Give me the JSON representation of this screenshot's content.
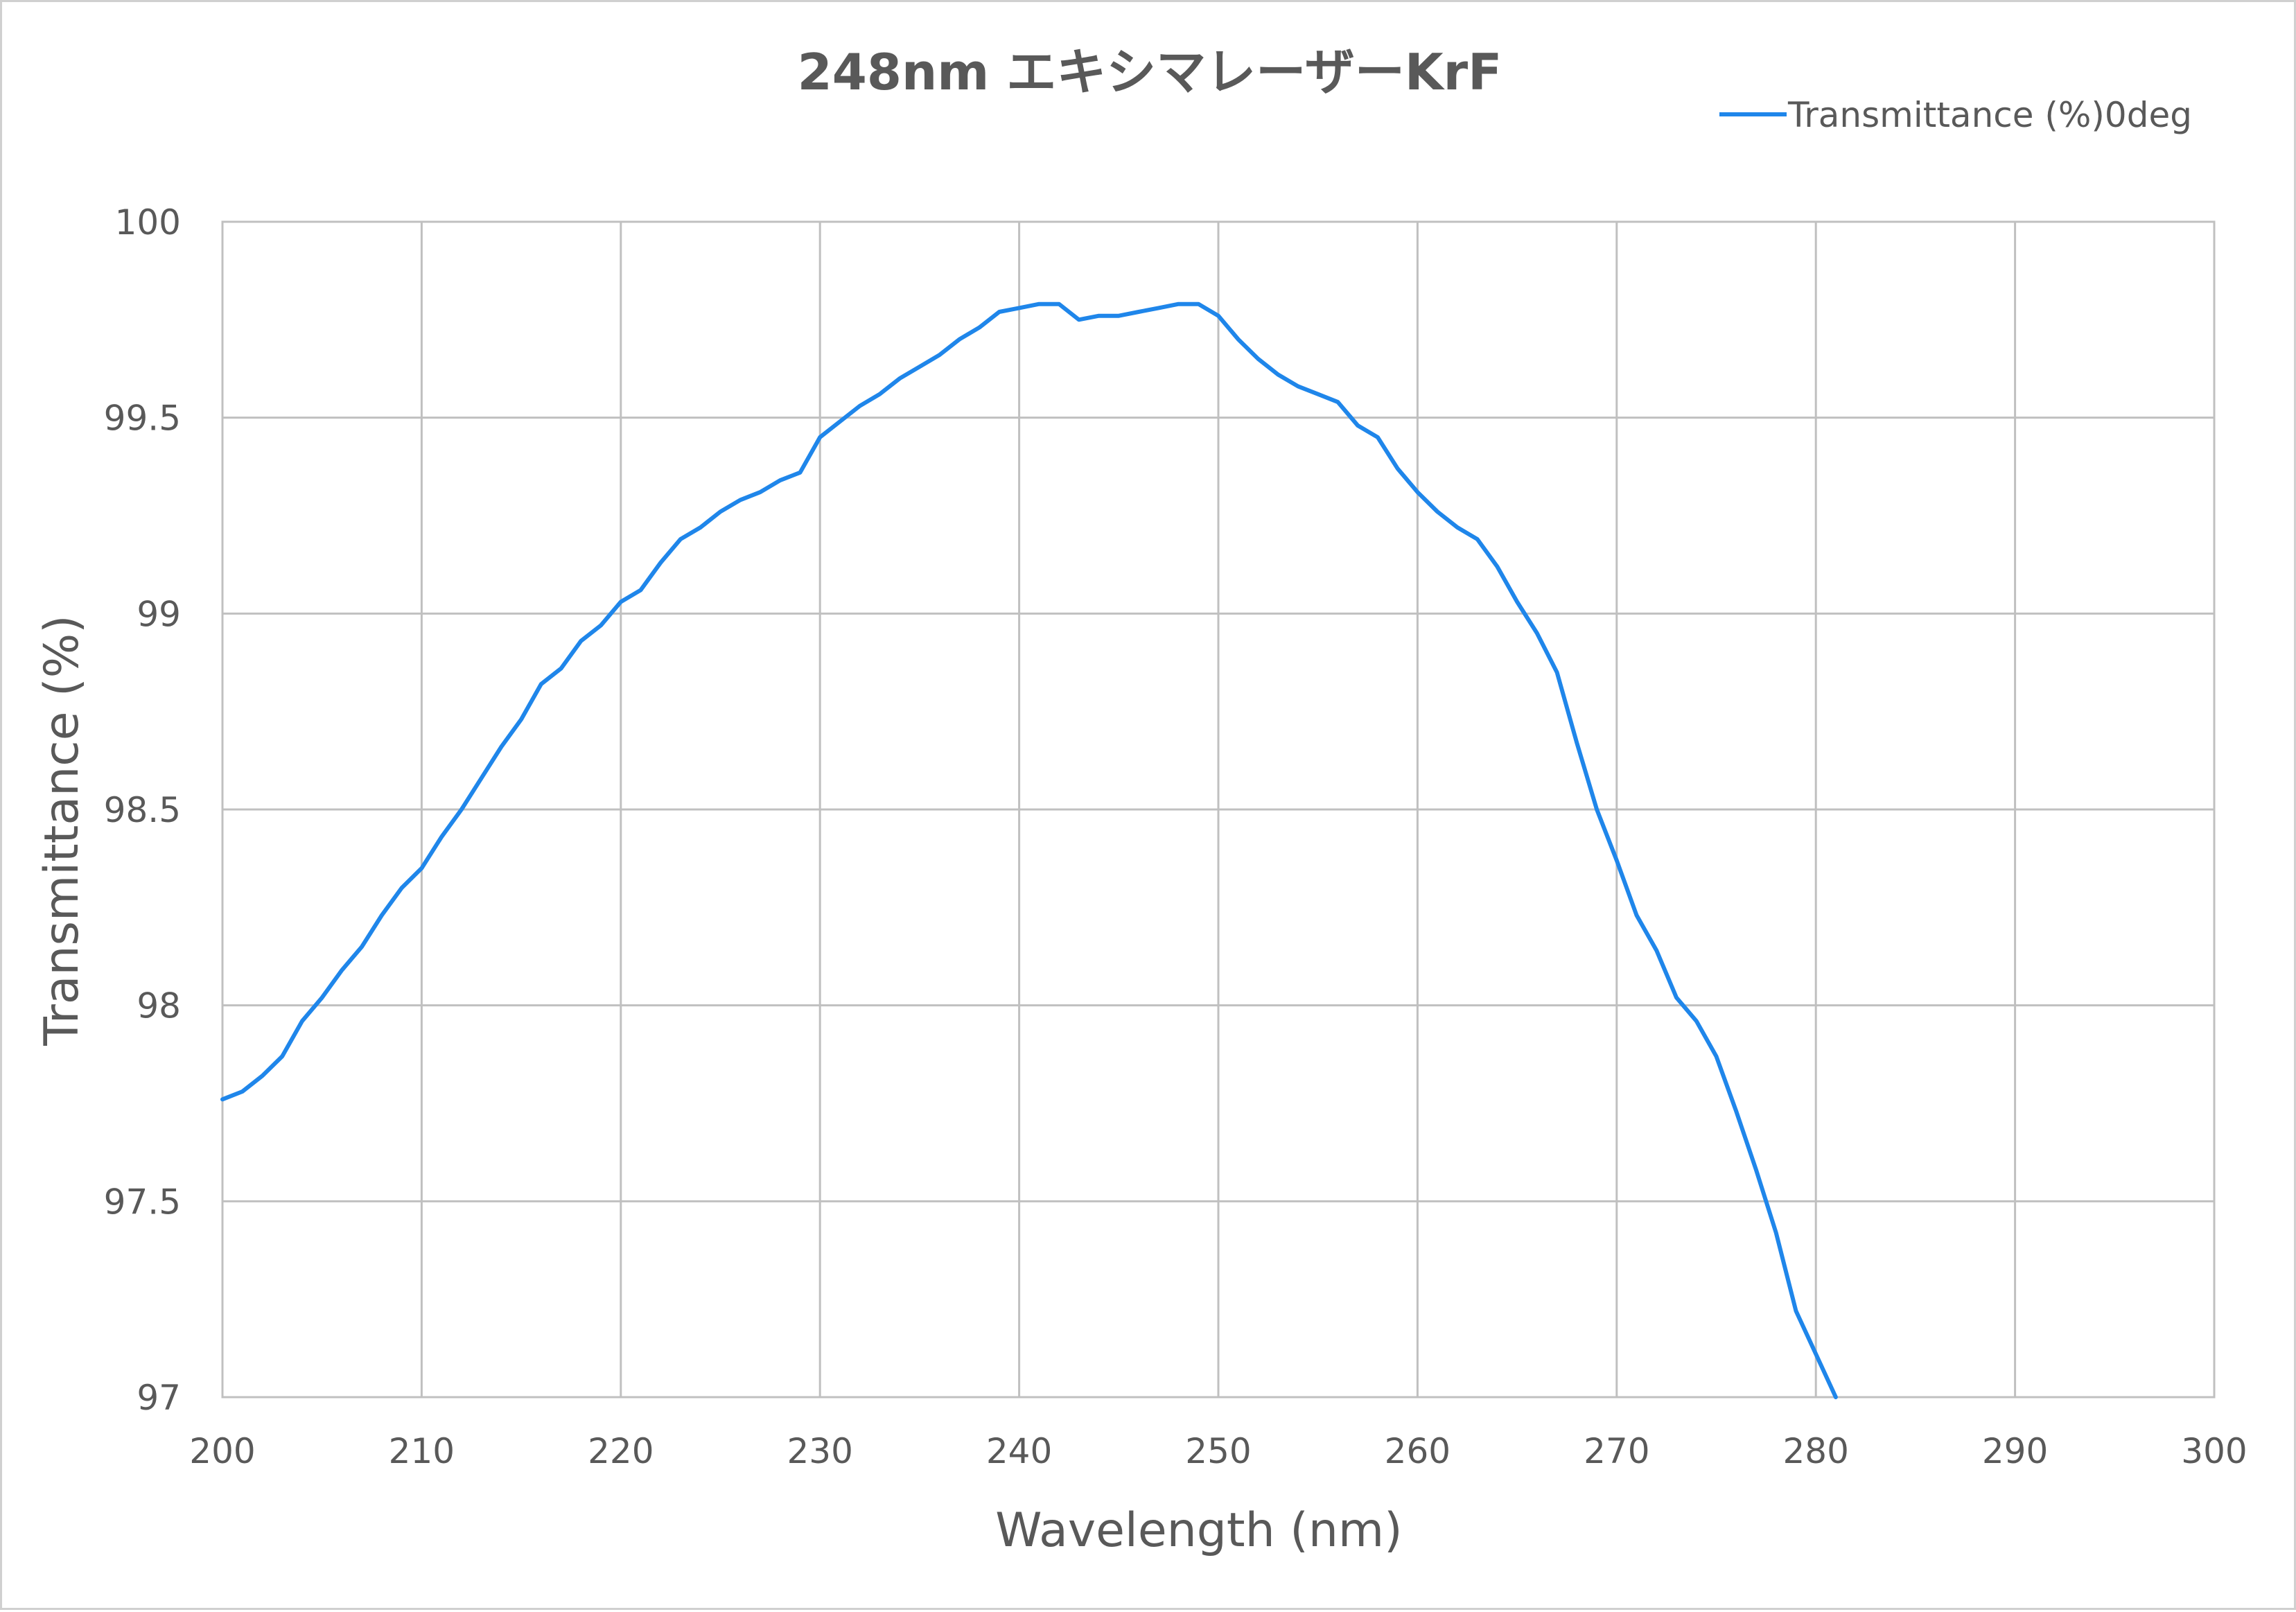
{
  "chart_data": {
    "type": "line",
    "title": "248nm エキシマレーザーKrF",
    "xlabel": "Wavelength (nm)",
    "ylabel": "Transmittance (%)",
    "xlim": [
      200,
      300
    ],
    "ylim": [
      97,
      100
    ],
    "x_ticks": [
      200,
      210,
      220,
      230,
      240,
      250,
      260,
      270,
      280,
      290,
      300
    ],
    "y_ticks": [
      97,
      97.5,
      98,
      98.5,
      99,
      99.5,
      100
    ],
    "y_tick_labels": [
      "97",
      "97.5",
      "98",
      "98.5",
      "99",
      "99.5",
      "100"
    ],
    "grid": true,
    "legend_position": "top-right",
    "colors": {
      "series": "#1f86ea",
      "grid": "#c0c0c0",
      "text": "#595959"
    },
    "series": [
      {
        "name": "Transmittance (%)0deg",
        "x": [
          200,
          201,
          202,
          203,
          204,
          205,
          206,
          207,
          208,
          209,
          210,
          211,
          212,
          213,
          214,
          215,
          216,
          217,
          218,
          219,
          220,
          221,
          222,
          223,
          224,
          225,
          226,
          227,
          228,
          229,
          230,
          231,
          232,
          233,
          234,
          235,
          236,
          237,
          238,
          239,
          240,
          241,
          242,
          243,
          244,
          245,
          246,
          247,
          248,
          249,
          250,
          251,
          252,
          253,
          254,
          255,
          256,
          257,
          258,
          259,
          260,
          261,
          262,
          263,
          264,
          265,
          266,
          267,
          268,
          269,
          270,
          271,
          272,
          273,
          274,
          275,
          276,
          277,
          278,
          279,
          280,
          281
        ],
        "values": [
          97.76,
          97.78,
          97.82,
          97.87,
          97.96,
          98.02,
          98.09,
          98.15,
          98.23,
          98.3,
          98.35,
          98.43,
          98.5,
          98.58,
          98.66,
          98.73,
          98.82,
          98.86,
          98.93,
          98.97,
          99.03,
          99.06,
          99.13,
          99.19,
          99.22,
          99.26,
          99.29,
          99.31,
          99.34,
          99.36,
          99.45,
          99.49,
          99.53,
          99.56,
          99.6,
          99.63,
          99.66,
          99.7,
          99.73,
          99.77,
          99.78,
          99.79,
          99.79,
          99.75,
          99.76,
          99.76,
          99.77,
          99.78,
          99.79,
          99.79,
          99.76,
          99.7,
          99.65,
          99.61,
          99.58,
          99.56,
          99.54,
          99.48,
          99.45,
          99.37,
          99.31,
          99.26,
          99.22,
          99.19,
          99.12,
          99.03,
          98.95,
          98.85,
          98.67,
          98.5,
          98.37,
          98.23,
          98.14,
          98.02,
          97.96,
          97.87,
          97.73,
          97.58,
          97.42,
          97.22,
          97.11,
          97.0
        ]
      }
    ]
  }
}
